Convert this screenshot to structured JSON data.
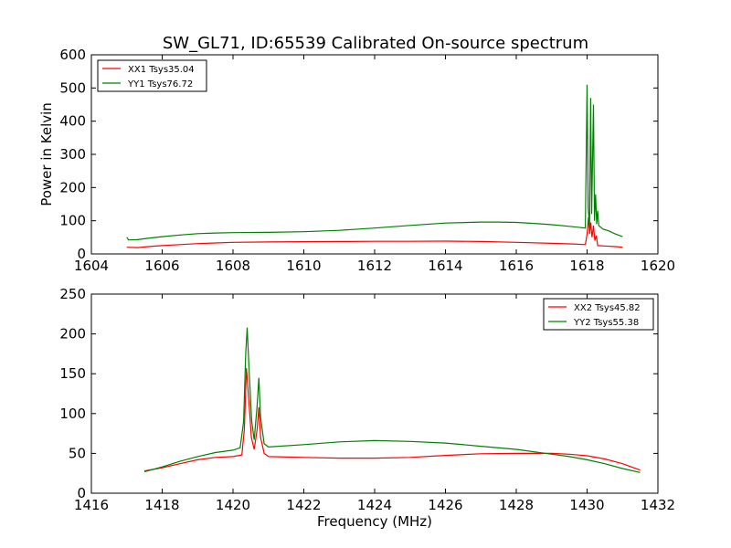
{
  "chart_data": [
    {
      "type": "line",
      "title": "SW_GL71, ID:65539 Calibrated On-source spectrum",
      "xlabel": "",
      "ylabel": "Power in Kelvin",
      "xlim": [
        1604,
        1620
      ],
      "ylim": [
        0,
        600
      ],
      "xticks": [
        1604,
        1606,
        1608,
        1610,
        1612,
        1614,
        1616,
        1618,
        1620
      ],
      "yticks": [
        0,
        100,
        200,
        300,
        400,
        500,
        600
      ],
      "legend_position": "top-left",
      "grid": false,
      "series": [
        {
          "name": "XX1 Tsys35.04",
          "color": "#ff0000",
          "points": [
            [
              1605.0,
              20
            ],
            [
              1605.3,
              19
            ],
            [
              1605.6,
              22
            ],
            [
              1606.0,
              25
            ],
            [
              1606.5,
              28
            ],
            [
              1607,
              31
            ],
            [
              1607.5,
              33
            ],
            [
              1608,
              35
            ],
            [
              1609,
              36
            ],
            [
              1610,
              37
            ],
            [
              1611,
              37.5
            ],
            [
              1612,
              38
            ],
            [
              1613,
              38
            ],
            [
              1614,
              38.5
            ],
            [
              1615,
              37.5
            ],
            [
              1616,
              35
            ],
            [
              1617,
              32
            ],
            [
              1617.6,
              30
            ],
            [
              1617.95,
              28
            ],
            [
              1618.0,
              60
            ],
            [
              1618.04,
              110
            ],
            [
              1618.07,
              60
            ],
            [
              1618.1,
              95
            ],
            [
              1618.14,
              50
            ],
            [
              1618.18,
              85
            ],
            [
              1618.22,
              40
            ],
            [
              1618.26,
              55
            ],
            [
              1618.3,
              25
            ],
            [
              1618.5,
              24
            ],
            [
              1618.8,
              22
            ],
            [
              1619.0,
              20
            ]
          ]
        },
        {
          "name": "YY1 Tsys76.72",
          "color": "#008000",
          "points": [
            [
              1605.0,
              50
            ],
            [
              1605.05,
              42
            ],
            [
              1605.3,
              43
            ],
            [
              1605.6,
              47
            ],
            [
              1606.0,
              52
            ],
            [
              1606.5,
              57
            ],
            [
              1607,
              61
            ],
            [
              1607.5,
              63
            ],
            [
              1608,
              64
            ],
            [
              1609,
              65
            ],
            [
              1610,
              67
            ],
            [
              1611,
              71
            ],
            [
              1612,
              78
            ],
            [
              1613,
              86
            ],
            [
              1614,
              93
            ],
            [
              1615,
              96
            ],
            [
              1615.5,
              96
            ],
            [
              1616,
              95
            ],
            [
              1616.5,
              92
            ],
            [
              1617,
              88
            ],
            [
              1617.5,
              83
            ],
            [
              1617.95,
              78
            ],
            [
              1618.0,
              510
            ],
            [
              1618.03,
              140
            ],
            [
              1618.07,
              80
            ],
            [
              1618.1,
              470
            ],
            [
              1618.13,
              120
            ],
            [
              1618.18,
              450
            ],
            [
              1618.21,
              100
            ],
            [
              1618.24,
              180
            ],
            [
              1618.27,
              90
            ],
            [
              1618.3,
              130
            ],
            [
              1618.33,
              85
            ],
            [
              1618.45,
              75
            ],
            [
              1618.6,
              70
            ],
            [
              1618.8,
              60
            ],
            [
              1619.0,
              52
            ]
          ]
        }
      ]
    },
    {
      "type": "line",
      "title": "",
      "xlabel": "Frequency (MHz)",
      "ylabel": "",
      "xlim": [
        1416,
        1432
      ],
      "ylim": [
        0,
        250
      ],
      "xticks": [
        1416,
        1418,
        1420,
        1422,
        1424,
        1426,
        1428,
        1430,
        1432
      ],
      "yticks": [
        0,
        50,
        100,
        150,
        200,
        250
      ],
      "legend_position": "top-right",
      "grid": false,
      "series": [
        {
          "name": "XX2 Tsys45.82",
          "color": "#ff0000",
          "points": [
            [
              1417.5,
              28
            ],
            [
              1418,
              32
            ],
            [
              1418.5,
              37
            ],
            [
              1419,
              42
            ],
            [
              1419.5,
              45
            ],
            [
              1420,
              46
            ],
            [
              1420.25,
              48
            ],
            [
              1420.32,
              80
            ],
            [
              1420.38,
              157
            ],
            [
              1420.44,
              120
            ],
            [
              1420.52,
              70
            ],
            [
              1420.6,
              55
            ],
            [
              1420.68,
              80
            ],
            [
              1420.73,
              108
            ],
            [
              1420.78,
              70
            ],
            [
              1420.88,
              50
            ],
            [
              1421,
              46
            ],
            [
              1422,
              45
            ],
            [
              1423,
              44
            ],
            [
              1424,
              44
            ],
            [
              1425,
              45
            ],
            [
              1426,
              47.5
            ],
            [
              1427,
              49.5
            ],
            [
              1428,
              50
            ],
            [
              1429,
              50
            ],
            [
              1429.5,
              49
            ],
            [
              1430,
              47
            ],
            [
              1430.5,
              43
            ],
            [
              1431,
              37
            ],
            [
              1431.5,
              29
            ]
          ]
        },
        {
          "name": "YY2 Tsys55.38",
          "color": "#008000",
          "points": [
            [
              1417.5,
              27
            ],
            [
              1418,
              33
            ],
            [
              1418.5,
              40
            ],
            [
              1419,
              46
            ],
            [
              1419.5,
              51
            ],
            [
              1420,
              54
            ],
            [
              1420.2,
              57
            ],
            [
              1420.3,
              90
            ],
            [
              1420.36,
              175
            ],
            [
              1420.4,
              208
            ],
            [
              1420.46,
              150
            ],
            [
              1420.53,
              90
            ],
            [
              1420.6,
              67
            ],
            [
              1420.68,
              110
            ],
            [
              1420.73,
              145
            ],
            [
              1420.78,
              95
            ],
            [
              1420.88,
              62
            ],
            [
              1421,
              58
            ],
            [
              1422,
              61
            ],
            [
              1423,
              64.5
            ],
            [
              1424,
              66
            ],
            [
              1425,
              65
            ],
            [
              1426,
              63
            ],
            [
              1427,
              59
            ],
            [
              1428,
              55
            ],
            [
              1429,
              49
            ],
            [
              1429.5,
              46
            ],
            [
              1430,
              42
            ],
            [
              1430.5,
              37
            ],
            [
              1431,
              31
            ],
            [
              1431.5,
              26
            ]
          ]
        }
      ]
    }
  ]
}
